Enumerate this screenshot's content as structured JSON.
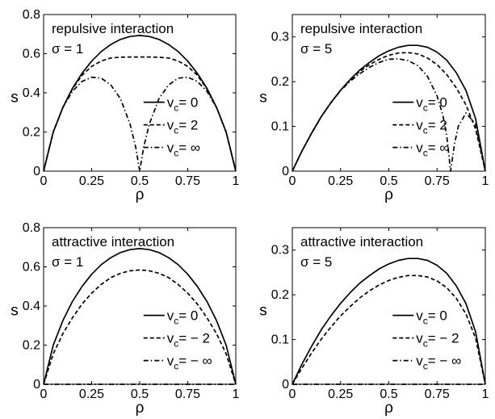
{
  "chart_data": [
    {
      "type": "line",
      "annotations": [
        "repulsive interaction",
        "σ = 1"
      ],
      "xlabel": "ρ",
      "ylabel": "s",
      "xlim": [
        0,
        1
      ],
      "ylim": [
        0,
        0.8
      ],
      "xticks": [
        "0",
        "0.25",
        "0.5",
        "0.75",
        "1"
      ],
      "yticks": [
        "0",
        "0.2",
        "0.4",
        "0.6",
        "0.8"
      ],
      "legend_placement": "center-right",
      "grid": false,
      "series": [
        {
          "name": "v_c = 0",
          "label_main": "v",
          "label_sub": "c",
          "label_rest": "= 0",
          "style": "solid",
          "x": [
            0,
            0.05,
            0.1,
            0.15,
            0.2,
            0.25,
            0.3,
            0.35,
            0.4,
            0.45,
            0.5,
            0.55,
            0.6,
            0.65,
            0.7,
            0.75,
            0.8,
            0.85,
            0.9,
            0.95,
            1
          ],
          "y": [
            0,
            0.199,
            0.325,
            0.423,
            0.5,
            0.562,
            0.611,
            0.647,
            0.673,
            0.688,
            0.693,
            0.688,
            0.673,
            0.647,
            0.611,
            0.562,
            0.5,
            0.423,
            0.325,
            0.199,
            0
          ]
        },
        {
          "name": "v_c = 2",
          "label_main": "v",
          "label_sub": "c",
          "label_rest": "= 2",
          "style": "dashed",
          "x": [
            0,
            0.05,
            0.1,
            0.15,
            0.2,
            0.25,
            0.3,
            0.35,
            0.4,
            0.45,
            0.5,
            0.55,
            0.6,
            0.65,
            0.7,
            0.75,
            0.8,
            0.85,
            0.9,
            0.95,
            1
          ],
          "y": [
            0,
            0.199,
            0.325,
            0.42,
            0.49,
            0.535,
            0.563,
            0.578,
            0.582,
            0.583,
            0.583,
            0.583,
            0.582,
            0.578,
            0.563,
            0.535,
            0.49,
            0.42,
            0.325,
            0.199,
            0
          ]
        },
        {
          "name": "v_c = ∞",
          "label_main": "v",
          "label_sub": "c",
          "label_rest": "= ∞",
          "style": "dashdot",
          "x": [
            0,
            0.05,
            0.1,
            0.15,
            0.2,
            0.25,
            0.3,
            0.35,
            0.4,
            0.45,
            0.48,
            0.5,
            0.52,
            0.55,
            0.6,
            0.65,
            0.7,
            0.75,
            0.8,
            0.85,
            0.9,
            0.95,
            1
          ],
          "y": [
            0,
            0.199,
            0.325,
            0.408,
            0.458,
            0.48,
            0.475,
            0.44,
            0.37,
            0.24,
            0.12,
            0,
            0.12,
            0.24,
            0.37,
            0.44,
            0.475,
            0.48,
            0.458,
            0.408,
            0.325,
            0.199,
            0
          ]
        }
      ]
    },
    {
      "type": "line",
      "annotations": [
        "repulsive interaction",
        "σ = 5"
      ],
      "xlabel": "ρ",
      "ylabel": "s",
      "xlim": [
        0,
        1
      ],
      "ylim": [
        0,
        0.35
      ],
      "xticks": [
        "0",
        "0.25",
        "0.5",
        "0.75",
        "1"
      ],
      "yticks": [
        "0",
        "0.1",
        "0.2",
        "0.3"
      ],
      "legend_placement": "center-right",
      "grid": false,
      "series": [
        {
          "name": "v_c = 0",
          "label_main": "v",
          "label_sub": "c",
          "label_rest": "= 0",
          "style": "solid",
          "x": [
            0,
            0.05,
            0.1,
            0.15,
            0.2,
            0.25,
            0.3,
            0.35,
            0.4,
            0.45,
            0.5,
            0.55,
            0.6,
            0.65,
            0.7,
            0.75,
            0.8,
            0.85,
            0.9,
            0.95,
            1
          ],
          "y": [
            0,
            0.045,
            0.085,
            0.122,
            0.153,
            0.181,
            0.205,
            0.226,
            0.243,
            0.258,
            0.269,
            0.277,
            0.281,
            0.281,
            0.277,
            0.266,
            0.248,
            0.22,
            0.18,
            0.117,
            0
          ]
        },
        {
          "name": "v_c = 2",
          "label_main": "v",
          "label_sub": "c",
          "label_rest": "= 2",
          "style": "dashed",
          "x": [
            0,
            0.05,
            0.1,
            0.15,
            0.2,
            0.25,
            0.3,
            0.35,
            0.4,
            0.45,
            0.5,
            0.55,
            0.6,
            0.65,
            0.7,
            0.75,
            0.8,
            0.85,
            0.9,
            0.95,
            1
          ],
          "y": [
            0,
            0.045,
            0.085,
            0.122,
            0.153,
            0.181,
            0.204,
            0.223,
            0.238,
            0.25,
            0.259,
            0.264,
            0.265,
            0.262,
            0.253,
            0.238,
            0.216,
            0.186,
            0.148,
            0.094,
            0
          ]
        },
        {
          "name": "v_c = ∞",
          "label_main": "v",
          "label_sub": "c",
          "label_rest": "= ∞",
          "style": "dashdot",
          "x": [
            0,
            0.05,
            0.1,
            0.15,
            0.2,
            0.25,
            0.3,
            0.35,
            0.4,
            0.45,
            0.5,
            0.55,
            0.6,
            0.65,
            0.7,
            0.75,
            0.78,
            0.8,
            0.82,
            0.84,
            0.86,
            0.9,
            0.95,
            1
          ],
          "y": [
            0,
            0.045,
            0.085,
            0.122,
            0.153,
            0.18,
            0.201,
            0.218,
            0.232,
            0.243,
            0.25,
            0.251,
            0.247,
            0.236,
            0.212,
            0.168,
            0.125,
            0.08,
            0,
            0.06,
            0.1,
            0.13,
            0.105,
            0
          ]
        }
      ]
    },
    {
      "type": "line",
      "annotations": [
        "attractive interaction",
        "σ = 1"
      ],
      "xlabel": "ρ",
      "ylabel": "s",
      "xlim": [
        0,
        1
      ],
      "ylim": [
        0,
        0.8
      ],
      "xticks": [
        "0",
        "0.25",
        "0.5",
        "0.75",
        "1"
      ],
      "yticks": [
        "0",
        "0.2",
        "0.4",
        "0.6",
        "0.8"
      ],
      "legend_placement": "center-right",
      "grid": false,
      "series": [
        {
          "name": "v_c = 0",
          "label_main": "v",
          "label_sub": "c",
          "label_rest": "= 0",
          "style": "solid",
          "x": [
            0,
            0.05,
            0.1,
            0.15,
            0.2,
            0.25,
            0.3,
            0.35,
            0.4,
            0.45,
            0.5,
            0.55,
            0.6,
            0.65,
            0.7,
            0.75,
            0.8,
            0.85,
            0.9,
            0.95,
            1
          ],
          "y": [
            0,
            0.199,
            0.325,
            0.423,
            0.5,
            0.562,
            0.611,
            0.647,
            0.673,
            0.688,
            0.693,
            0.688,
            0.673,
            0.647,
            0.611,
            0.562,
            0.5,
            0.423,
            0.325,
            0.199,
            0
          ]
        },
        {
          "name": "v_c = − 2",
          "label_main": "v",
          "label_sub": "c",
          "label_rest": "= − 2",
          "style": "dashed",
          "x": [
            0,
            0.05,
            0.1,
            0.15,
            0.2,
            0.25,
            0.3,
            0.35,
            0.4,
            0.45,
            0.5,
            0.55,
            0.6,
            0.65,
            0.7,
            0.75,
            0.8,
            0.85,
            0.9,
            0.95,
            1
          ],
          "y": [
            0,
            0.155,
            0.258,
            0.34,
            0.41,
            0.465,
            0.51,
            0.545,
            0.567,
            0.58,
            0.584,
            0.58,
            0.567,
            0.545,
            0.51,
            0.465,
            0.41,
            0.34,
            0.258,
            0.155,
            0
          ]
        },
        {
          "name": "v_c = − ∞",
          "label_main": "v",
          "label_sub": "c",
          "label_rest": "= − ∞",
          "style": "dashdot",
          "x": [
            0,
            1
          ],
          "y": [
            0,
            0
          ]
        }
      ]
    },
    {
      "type": "line",
      "annotations": [
        "attractive interaction",
        "σ = 5"
      ],
      "xlabel": "ρ",
      "ylabel": "s",
      "xlim": [
        0,
        1
      ],
      "ylim": [
        0,
        0.35
      ],
      "xticks": [
        "0",
        "0.25",
        "0.5",
        "0.75",
        "1"
      ],
      "yticks": [
        "0",
        "0.1",
        "0.2",
        "0.3"
      ],
      "legend_placement": "center-right",
      "grid": false,
      "series": [
        {
          "name": "v_c = 0",
          "label_main": "v",
          "label_sub": "c",
          "label_rest": "= 0",
          "style": "solid",
          "x": [
            0,
            0.05,
            0.1,
            0.15,
            0.2,
            0.25,
            0.3,
            0.35,
            0.4,
            0.45,
            0.5,
            0.55,
            0.6,
            0.65,
            0.7,
            0.75,
            0.8,
            0.85,
            0.9,
            0.95,
            1
          ],
          "y": [
            0,
            0.045,
            0.085,
            0.122,
            0.153,
            0.181,
            0.205,
            0.226,
            0.243,
            0.258,
            0.269,
            0.277,
            0.281,
            0.281,
            0.277,
            0.266,
            0.248,
            0.22,
            0.18,
            0.117,
            0
          ]
        },
        {
          "name": "v_c = − 2",
          "label_main": "v",
          "label_sub": "c",
          "label_rest": "= − 2",
          "style": "dashed",
          "x": [
            0,
            0.05,
            0.1,
            0.15,
            0.2,
            0.25,
            0.3,
            0.35,
            0.4,
            0.45,
            0.5,
            0.55,
            0.6,
            0.65,
            0.7,
            0.75,
            0.8,
            0.85,
            0.9,
            0.95,
            1
          ],
          "y": [
            0,
            0.036,
            0.07,
            0.101,
            0.128,
            0.153,
            0.174,
            0.193,
            0.209,
            0.222,
            0.232,
            0.239,
            0.243,
            0.243,
            0.24,
            0.231,
            0.216,
            0.192,
            0.157,
            0.103,
            0
          ]
        },
        {
          "name": "v_c = − ∞",
          "label_main": "v",
          "label_sub": "c",
          "label_rest": "= − ∞",
          "style": "dashdot",
          "x": [
            0,
            1
          ],
          "y": [
            0,
            0
          ]
        }
      ]
    }
  ]
}
